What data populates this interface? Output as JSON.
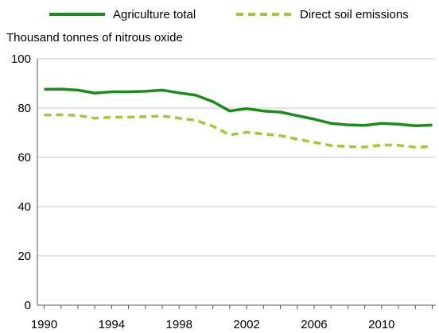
{
  "chart_data": {
    "type": "line",
    "title": "",
    "ylabel": "Thousand tonnes of nitrous oxide",
    "xlabel": "",
    "x": [
      1990,
      1991,
      1992,
      1993,
      1994,
      1995,
      1996,
      1997,
      1998,
      1999,
      2000,
      2001,
      2002,
      2003,
      2004,
      2005,
      2006,
      2007,
      2008,
      2009,
      2010,
      2011,
      2012,
      2013
    ],
    "xticks": [
      "1990",
      "1994",
      "1998",
      "2002",
      "2006",
      "2010"
    ],
    "yticks": [
      "0",
      "20",
      "40",
      "60",
      "80",
      "100"
    ],
    "ylim": [
      0,
      100
    ],
    "grid": "horizontal",
    "legend_position": "top",
    "series": [
      {
        "name": "Agriculture total",
        "color": "#1a8c1a",
        "style": "solid",
        "values": [
          87.6,
          87.7,
          87.3,
          86.1,
          86.6,
          86.6,
          86.8,
          87.3,
          86.2,
          85.2,
          82.6,
          78.8,
          79.8,
          78.8,
          78.4,
          76.9,
          75.5,
          73.8,
          73.2,
          73.0,
          73.8,
          73.5,
          72.8,
          73.1
        ]
      },
      {
        "name": "Direct soil emissions",
        "color": "#9acd32",
        "style": "dashed",
        "values": [
          77.2,
          77.3,
          77.0,
          75.9,
          76.3,
          76.3,
          76.5,
          76.8,
          75.9,
          75.0,
          72.6,
          69.1,
          70.2,
          69.5,
          68.8,
          67.4,
          66.1,
          64.8,
          64.4,
          64.2,
          65.0,
          64.9,
          64.1,
          64.4
        ]
      }
    ]
  }
}
